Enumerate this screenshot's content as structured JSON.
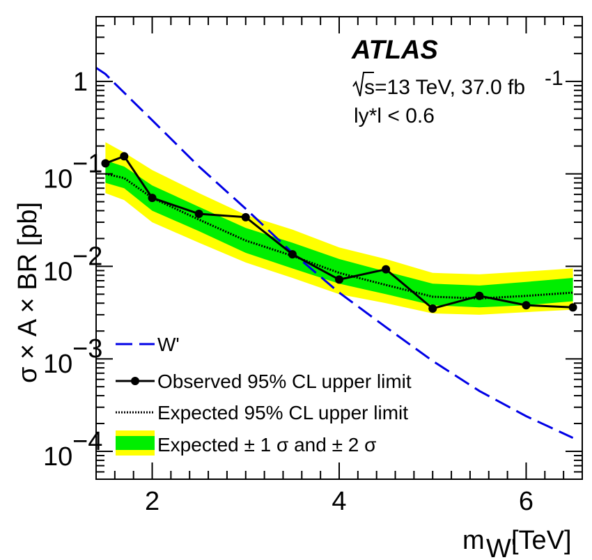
{
  "chart_data": {
    "type": "line",
    "experiment": "ATLAS",
    "annotations": {
      "sqrt_s": "s=13 TeV, 37.0 fb",
      "lumi_exp": "-1",
      "cut": "ly*l < 0.6"
    },
    "xlabel": "m",
    "xlabel_sub": "W'",
    "xlabel_unit": " [TeV]",
    "ylabel": "σ × A × BR [pb]",
    "xlim": [
      1.4,
      6.6
    ],
    "ylim": [
      5e-05,
      5
    ],
    "yscale": "log",
    "xticks": [
      2,
      4,
      6
    ],
    "yticks": [
      {
        "value": 1,
        "label": "1"
      },
      {
        "value": 0.1,
        "base": "10",
        "exp": "−1"
      },
      {
        "value": 0.01,
        "base": "10",
        "exp": "−2"
      },
      {
        "value": 0.001,
        "base": "10",
        "exp": "−3"
      },
      {
        "value": 0.0001,
        "base": "10",
        "exp": "−4"
      }
    ],
    "legend": [
      "W'",
      "Observed 95% CL upper limit",
      "Expected 95% CL upper limit",
      "Expected ± 1 σ and ± 2 σ"
    ],
    "series": {
      "wprime": {
        "name": "W'",
        "color": "#0000e6",
        "x": [
          1.4,
          1.5,
          1.6,
          1.8,
          2.0,
          2.5,
          3.0,
          3.5,
          4.0,
          4.5,
          5.0,
          5.5,
          6.0,
          6.5
        ],
        "y": [
          1.4,
          1.2,
          0.95,
          0.6,
          0.38,
          0.12,
          0.042,
          0.014,
          0.0052,
          0.0022,
          0.00095,
          0.00045,
          0.00024,
          0.00014
        ]
      },
      "observed": {
        "name": "Observed 95% CL upper limit",
        "color": "#000000",
        "x": [
          1.5,
          1.7,
          2.0,
          2.5,
          3.0,
          3.5,
          4.0,
          4.5,
          5.0,
          5.5,
          6.0,
          6.5
        ],
        "y": [
          0.13,
          0.155,
          0.055,
          0.037,
          0.034,
          0.0135,
          0.0072,
          0.0093,
          0.0035,
          0.0048,
          0.0038,
          0.0036
        ]
      },
      "expected": {
        "name": "Expected 95% CL upper limit",
        "x": [
          1.5,
          1.7,
          2.0,
          2.5,
          3.0,
          3.5,
          4.0,
          4.5,
          5.0,
          5.5,
          6.0,
          6.5
        ],
        "y": [
          0.1,
          0.09,
          0.055,
          0.032,
          0.019,
          0.013,
          0.0085,
          0.0063,
          0.0047,
          0.0045,
          0.0048,
          0.0052
        ]
      },
      "band1": {
        "color": "#00ee00",
        "lo": [
          0.08,
          0.07,
          0.04,
          0.024,
          0.014,
          0.0095,
          0.0065,
          0.005,
          0.0038,
          0.0036,
          0.0038,
          0.0042
        ],
        "hi": [
          0.14,
          0.12,
          0.075,
          0.044,
          0.026,
          0.018,
          0.012,
          0.0088,
          0.0065,
          0.0062,
          0.0068,
          0.0075
        ]
      },
      "band2": {
        "color": "#ffff00",
        "lo": [
          0.062,
          0.052,
          0.03,
          0.018,
          0.011,
          0.0075,
          0.005,
          0.004,
          0.0031,
          0.003,
          0.0032,
          0.0034
        ],
        "hi": [
          0.22,
          0.17,
          0.11,
          0.062,
          0.036,
          0.025,
          0.016,
          0.012,
          0.0085,
          0.0082,
          0.0088,
          0.0095
        ]
      }
    }
  }
}
